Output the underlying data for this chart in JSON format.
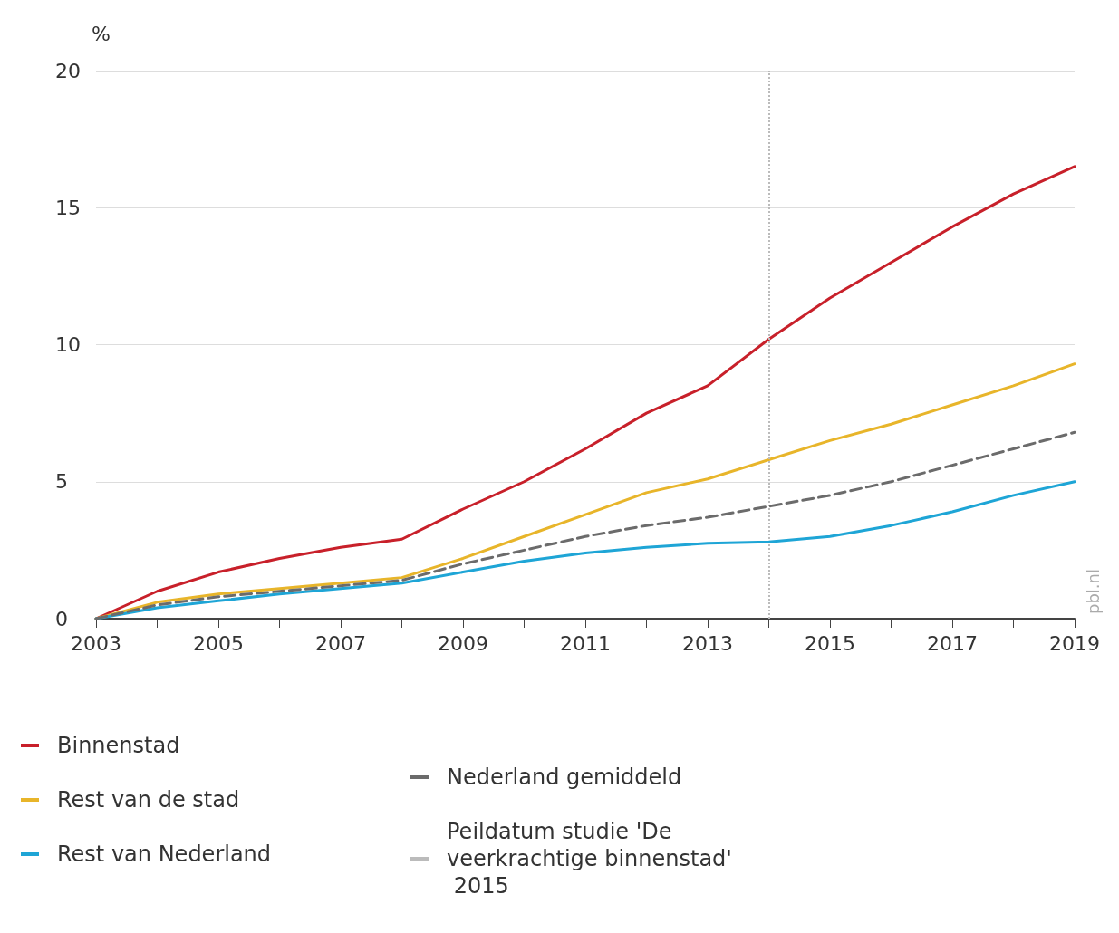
{
  "chart_data": {
    "type": "line",
    "ylabel": "%",
    "x": [
      2003,
      2004,
      2005,
      2006,
      2007,
      2008,
      2009,
      2010,
      2011,
      2012,
      2013,
      2014,
      2015,
      2016,
      2017,
      2018,
      2019
    ],
    "series": [
      {
        "name": "Binnenstad",
        "color": "#c8202a",
        "values": [
          0,
          1.0,
          1.7,
          2.2,
          2.6,
          2.9,
          4.0,
          5.0,
          6.2,
          7.5,
          8.5,
          10.2,
          11.7,
          13.0,
          14.3,
          15.5,
          16.5
        ]
      },
      {
        "name": "Rest van de stad",
        "color": "#e8b52a",
        "values": [
          0,
          0.6,
          0.9,
          1.1,
          1.3,
          1.5,
          2.2,
          3.0,
          3.8,
          4.6,
          5.1,
          5.8,
          6.5,
          7.1,
          7.8,
          8.5,
          9.3
        ]
      },
      {
        "name": "Rest van Nederland",
        "color": "#1ea5d6",
        "values": [
          0,
          0.4,
          0.65,
          0.9,
          1.1,
          1.3,
          1.7,
          2.1,
          2.4,
          2.6,
          2.75,
          2.8,
          3.0,
          3.4,
          3.9,
          4.5,
          5.0
        ]
      },
      {
        "name": "Nederland gemiddeld",
        "color": "#6b6b6b",
        "line_style": "dashed",
        "values": [
          0,
          0.5,
          0.8,
          1.0,
          1.2,
          1.4,
          2.0,
          2.5,
          3.0,
          3.4,
          3.7,
          4.1,
          4.5,
          5.0,
          5.6,
          6.2,
          6.8
        ]
      }
    ],
    "xlim": [
      2003,
      2019
    ],
    "xticks": [
      2003,
      {
        "value": 2004,
        "label": null
      },
      2005,
      {
        "value": 2006,
        "label": null
      },
      2007,
      {
        "value": 2008,
        "label": null
      },
      2009,
      {
        "value": 2010,
        "label": null
      },
      2011,
      {
        "value": 2012,
        "label": null
      },
      2013,
      {
        "value": 2014,
        "label": null
      },
      2015,
      {
        "value": 2016,
        "label": null
      },
      2017,
      {
        "value": 2018,
        "label": null
      },
      2019
    ],
    "ylim": [
      0,
      20
    ],
    "yticks": [
      0,
      5,
      10,
      15,
      20
    ],
    "grid": "y",
    "legend": "bottom",
    "marker": "none",
    "line_style": "solid",
    "ref_lines": [
      {
        "axis": "x",
        "value": 2014,
        "label": "Peildatum studie 'De veerkrachtige binnenstad' 2015",
        "color": "#bbbbbb",
        "line_style": "dotted"
      }
    ],
    "annotations": [
      "pbl.nl"
    ]
  }
}
